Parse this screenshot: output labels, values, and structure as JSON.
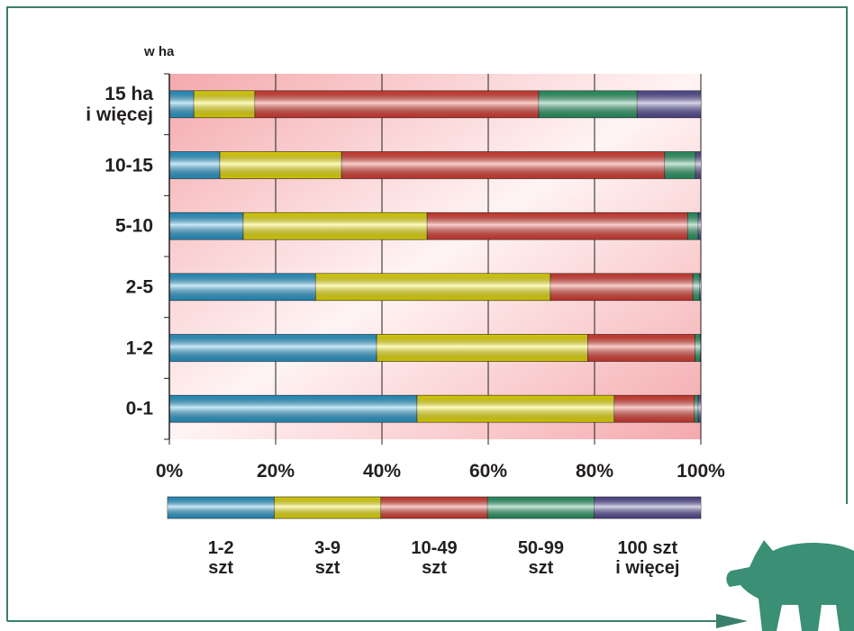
{
  "chart_data": {
    "type": "bar",
    "orientation": "horizontal",
    "stacked": true,
    "ylabel": "w ha",
    "categories": [
      "15 ha\ni więcej",
      "10-15",
      "5-10",
      "2-5",
      "1-2",
      "0-1"
    ],
    "series": [
      {
        "name": "1-2\nszt",
        "color": "#29a8e0",
        "values": [
          4.6,
          9.5,
          13.9,
          27.5,
          39.0,
          46.6
        ]
      },
      {
        "name": "3-9\nszt",
        "color": "#fff200",
        "values": [
          11.5,
          22.9,
          34.6,
          44.2,
          39.7,
          37.1
        ]
      },
      {
        "name": "10-49\nszt",
        "color": "#ef4136",
        "values": [
          53.4,
          60.8,
          49.0,
          26.8,
          20.2,
          15.1
        ]
      },
      {
        "name": "50-99\nszt",
        "color": "#2aa56b",
        "values": [
          18.5,
          5.8,
          2.0,
          1.3,
          1.0,
          0.7
        ]
      },
      {
        "name": "100 szt\ni więcej",
        "color": "#5b52a3",
        "values": [
          12.0,
          1.0,
          0.5,
          0.2,
          0.1,
          0.5
        ]
      }
    ],
    "xlim": [
      0,
      100
    ],
    "xticks": [
      {
        "value": 0,
        "label": "0%"
      },
      {
        "value": 20,
        "label": "20%"
      },
      {
        "value": 40,
        "label": "40%"
      },
      {
        "value": 60,
        "label": "60%"
      },
      {
        "value": 80,
        "label": "80%"
      },
      {
        "value": 100,
        "label": "100%"
      }
    ],
    "grid": true
  }
}
